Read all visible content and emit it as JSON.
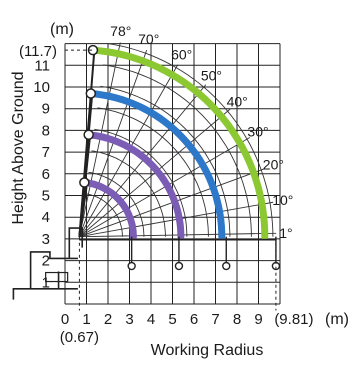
{
  "chart_data": {
    "type": "line",
    "xlabel": "Working Radius",
    "ylabel": "Height Above Ground",
    "x_unit": "(m)",
    "y_unit": "(m)",
    "x_ticks": [
      "0",
      "1",
      "2",
      "3",
      "4",
      "5",
      "6",
      "7",
      "8",
      "9"
    ],
    "y_ticks": [
      "1",
      "2",
      "3",
      "4",
      "5",
      "6",
      "7",
      "8",
      "9",
      "10",
      "11"
    ],
    "x_special_labels": [
      "(0.67)",
      "(9.81)"
    ],
    "y_special_label": "(11.7)",
    "xlim": [
      0,
      10
    ],
    "ylim": [
      0,
      12
    ],
    "angle_labels": [
      "78°",
      "70°",
      "60°",
      "50°",
      "40°",
      "30°",
      "20°",
      "10°",
      "1°"
    ],
    "angles": [
      78,
      70,
      60,
      50,
      40,
      30,
      20,
      10,
      1
    ],
    "pivot": [
      0.67,
      3.1
    ],
    "series": [
      {
        "boom": 1,
        "color": "#7b5db5",
        "tip_start": [
          0.9,
          5.6
        ],
        "tip_end": [
          3.1,
          3.1
        ]
      },
      {
        "boom": 2,
        "color": "#7b5db5",
        "tip_start": [
          1.1,
          7.8
        ],
        "tip_end": [
          5.3,
          3.1
        ]
      },
      {
        "boom": 3,
        "color": "#2d78c8",
        "tip_start": [
          1.2,
          9.7
        ],
        "tip_end": [
          7.5,
          3.1
        ]
      },
      {
        "boom": 4,
        "color": "#8bc832",
        "tip_start": [
          1.3,
          11.7
        ],
        "tip_end": [
          9.81,
          3.1
        ]
      }
    ]
  }
}
